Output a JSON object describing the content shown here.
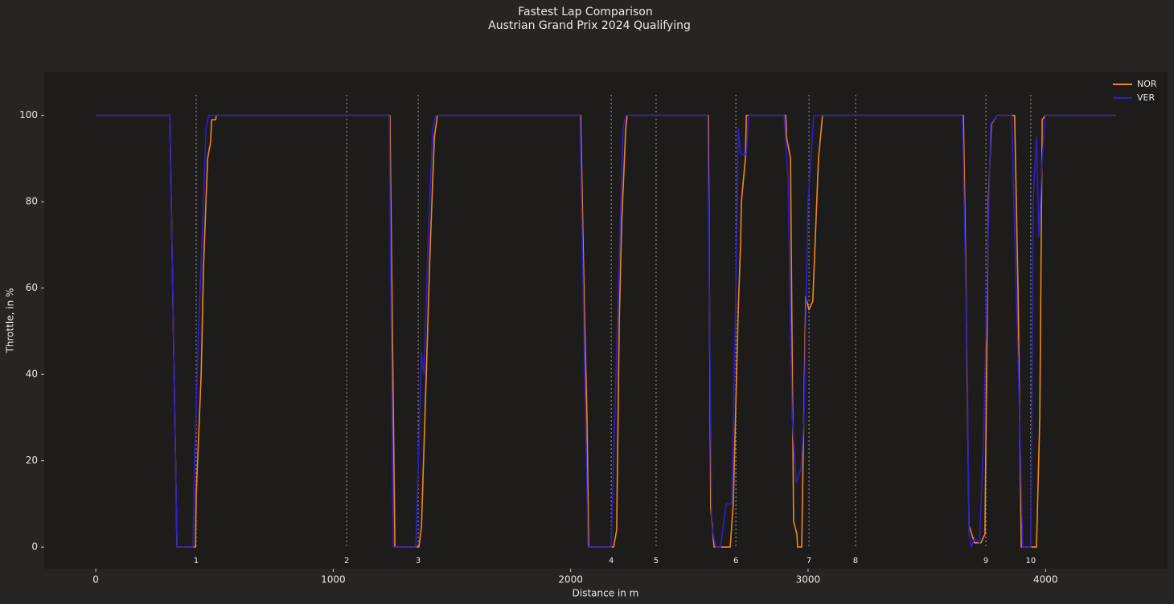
{
  "chart_data": {
    "type": "line",
    "title": "Fastest Lap Comparison",
    "subtitle": "Austrian Grand Prix 2024 Qualifying",
    "x_label": "Distance in m",
    "y_label": "Throttle, in %",
    "xlim": [
      -217,
      4514
    ],
    "ylim": [
      -5,
      110
    ],
    "xticks": [
      0,
      1000,
      2000,
      3000,
      4000
    ],
    "yticks": [
      0,
      20,
      40,
      60,
      80,
      100
    ],
    "grid": false,
    "legend": "upper right",
    "series": [
      {
        "name": "NOR",
        "color": "#f0861f",
        "x": [
          0,
          312,
          342,
          420,
          423,
          444,
          454,
          471,
          484,
          488,
          505,
          508,
          1239,
          1260,
          1361,
          1372,
          1392,
          1409,
          1426,
          1439,
          2042,
          2059,
          2069,
          2076,
          2181,
          2194,
          2205,
          2215,
          2232,
          2238,
          2580,
          2590,
          2604,
          2672,
          2685,
          2706,
          2716,
          2719,
          2736,
          2740,
          2753,
          2906,
          2909,
          2926,
          2939,
          2953,
          2956,
          2973,
          2990,
          3004,
          3020,
          3044,
          3061,
          3654,
          3664,
          3678,
          3701,
          3728,
          3745,
          3759,
          3772,
          3796,
          3870,
          3884,
          3898,
          3962,
          3976,
          3986,
          3999,
          4297
        ],
        "values": [
          100,
          100,
          0,
          0,
          12,
          40,
          65,
          90,
          94,
          99,
          99,
          100,
          100,
          0,
          0,
          5,
          40,
          70,
          95,
          100,
          100,
          52,
          30,
          0,
          0,
          4,
          53,
          75,
          97,
          100,
          100,
          9,
          0,
          0,
          10,
          55,
          71,
          80,
          90,
          100,
          100,
          100,
          95,
          90,
          6,
          3,
          0,
          0,
          58,
          55,
          57,
          90,
          100,
          100,
          65,
          5,
          1,
          1,
          3,
          80,
          98,
          100,
          100,
          60,
          0,
          0,
          30,
          99,
          100,
          100
        ]
      },
      {
        "name": "VER",
        "color": "#2a1fc9",
        "x": [
          0,
          312,
          342,
          410,
          416,
          433,
          454,
          464,
          477,
          1236,
          1253,
          1348,
          1372,
          1382,
          1399,
          1419,
          1432,
          2039,
          2073,
          2171,
          2201,
          2221,
          2232,
          2577,
          2594,
          2611,
          2631,
          2655,
          2678,
          2696,
          2706,
          2716,
          2740,
          2750,
          2899,
          2916,
          2933,
          2950,
          2970,
          2983,
          3000,
          3024,
          3650,
          3671,
          3678,
          3688,
          3701,
          3722,
          3739,
          3769,
          3796,
          3857,
          3891,
          3904,
          3938,
          3948,
          3962,
          3972,
          3986,
          3999,
          4297
        ],
        "values": [
          100,
          100,
          0,
          0,
          20,
          50,
          80,
          97,
          100,
          100,
          0,
          0,
          45,
          40,
          70,
          97,
          100,
          100,
          0,
          0,
          60,
          97,
          100,
          100,
          5,
          0,
          0,
          10,
          10,
          60,
          97,
          91,
          91,
          100,
          100,
          85,
          30,
          15,
          18,
          30,
          80,
          100,
          100,
          40,
          3,
          0,
          2,
          1,
          25,
          98,
          100,
          100,
          30,
          0,
          0,
          80,
          95,
          72,
          90,
          100,
          100
        ]
      }
    ],
    "corners": {
      "distances": [
        423,
        1057,
        1358,
        2171,
        2360,
        2696,
        3004,
        3200,
        3749,
        3938
      ],
      "labels": [
        "1",
        "2",
        "3",
        "4",
        "5",
        "6",
        "7",
        "8",
        "9",
        "10"
      ]
    }
  }
}
